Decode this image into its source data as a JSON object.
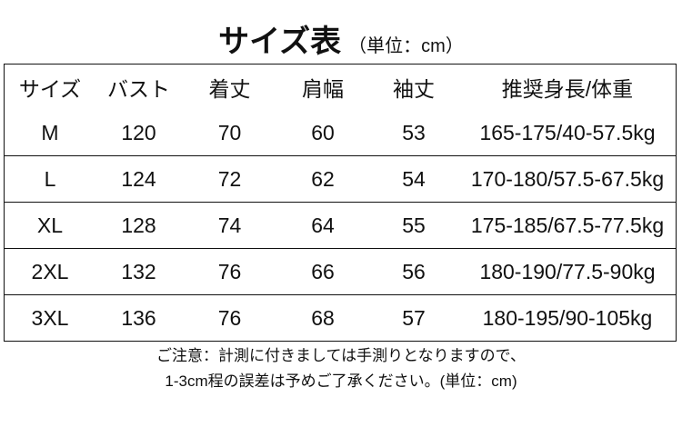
{
  "title": {
    "main": "サイズ表",
    "unit": "（単位：cm）"
  },
  "table": {
    "headers": [
      "サイズ",
      "バスト",
      "着丈",
      "肩幅",
      "袖丈",
      "推奨身長/体重"
    ],
    "rows": [
      [
        "M",
        "120",
        "70",
        "60",
        "53",
        "165-175/40-57.5kg"
      ],
      [
        "L",
        "124",
        "72",
        "62",
        "54",
        "170-180/57.5-67.5kg"
      ],
      [
        "XL",
        "128",
        "74",
        "64",
        "55",
        "175-185/67.5-77.5kg"
      ],
      [
        "2XL",
        "132",
        "76",
        "66",
        "56",
        "180-190/77.5-90kg"
      ],
      [
        "3XL",
        "136",
        "76",
        "68",
        "57",
        "180-195/90-105kg"
      ]
    ]
  },
  "note": {
    "line1": "ご注意：計測に付きましては手測りとなりますので、",
    "line2": "1-3cm程の誤差は予めご了承ください。(単位：cm)"
  }
}
